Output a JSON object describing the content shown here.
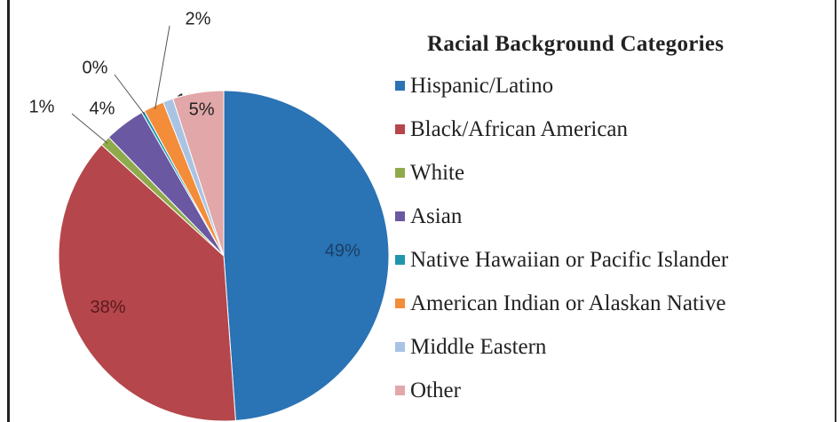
{
  "chart_data": {
    "type": "pie",
    "legend_title": "Racial Background Categories",
    "legend_position": "right",
    "slices": [
      {
        "name": "Hispanic/Latino",
        "value": 49,
        "label": "49%",
        "color": "#2a73b4"
      },
      {
        "name": "Black/African American",
        "value": 38,
        "label": "38%",
        "color": "#b5464b"
      },
      {
        "name": "White",
        "value": 1,
        "label": "1%",
        "color": "#8faa4c"
      },
      {
        "name": "Asian",
        "value": 4,
        "label": "4%",
        "color": "#6a58a2"
      },
      {
        "name": "Native Hawaiian or Pacific Islander",
        "value": 0.3,
        "label": "0%",
        "color": "#1f96ad"
      },
      {
        "name": "American Indian or Alaskan Native",
        "value": 2,
        "label": "2%",
        "color": "#f38d3a"
      },
      {
        "name": "Middle Eastern",
        "value": 1,
        "label": "1%",
        "color": "#a9c3e4"
      },
      {
        "name": "Other",
        "value": 5,
        "label": "5%",
        "color": "#e2a7a8"
      }
    ]
  }
}
